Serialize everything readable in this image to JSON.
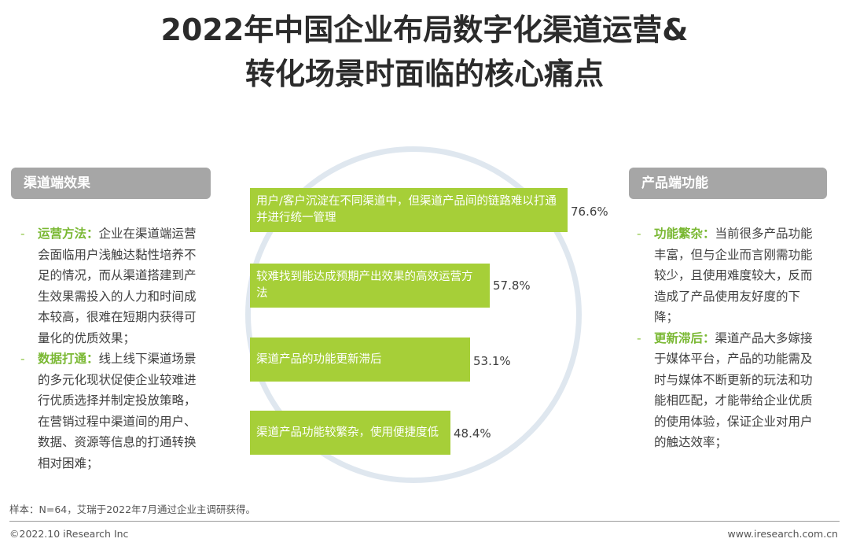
{
  "title": {
    "line1": "2022年中国企业布局数字化渠道运营&",
    "line2": "转化场景时面临的核心痛点"
  },
  "left_panel": {
    "header": "渠道端效果",
    "items": [
      {
        "bullet": "-",
        "label": "运营方法：",
        "text": "企业在渠道端运营会面临用户浅触达黏性培养不足的情况，而从渠道搭建到产生效果需投入的人力和时间成本较高，很难在短期内获得可量化的优质效果；"
      },
      {
        "bullet": "-",
        "label": "数据打通：",
        "text": "线上线下渠道场景的多元化现状促使企业较难进行优质选择并制定投放策略，在营销过程中渠道间的用户、数据、资源等信息的打通转换相对困难；"
      }
    ]
  },
  "right_panel": {
    "header": "产品端功能",
    "items": [
      {
        "bullet": "-",
        "label": "功能繁杂：",
        "text": "当前很多产品功能丰富，但与企业而言刚需功能较少，且使用难度较大，反而造成了产品使用友好度的下降；"
      },
      {
        "bullet": "-",
        "label": "更新滞后：",
        "text": "渠道产品大多嫁接于媒体平台，产品的功能需及时与媒体不断更新的玩法和功能相匹配，才能带给企业优质的使用体验，保证企业对用户的触达效率；"
      }
    ]
  },
  "chart_data": {
    "type": "bar",
    "orientation": "horizontal",
    "categories": [
      "用户/客户沉淀在不同渠道中，但渠道产品间的链路难以打通并进行统一管理",
      "较难找到能达成预期产出效果的高效运营方法",
      "渠道产品的功能更新滞后",
      "渠道产品功能较繁杂，使用便捷度低"
    ],
    "values": [
      76.6,
      57.8,
      53.1,
      48.4
    ],
    "value_labels": [
      "76.6%",
      "57.8%",
      "53.1%",
      "48.4%"
    ],
    "xlim": [
      0,
      76.6
    ],
    "bar_color": "#a6cf38",
    "grid": false,
    "legend": "none"
  },
  "footer": {
    "note": "样本：N=64，艾瑞于2022年7月通过企业主调研获得。",
    "copyright": "©2022.10 iResearch Inc",
    "website": "www.iresearch.com.cn"
  }
}
